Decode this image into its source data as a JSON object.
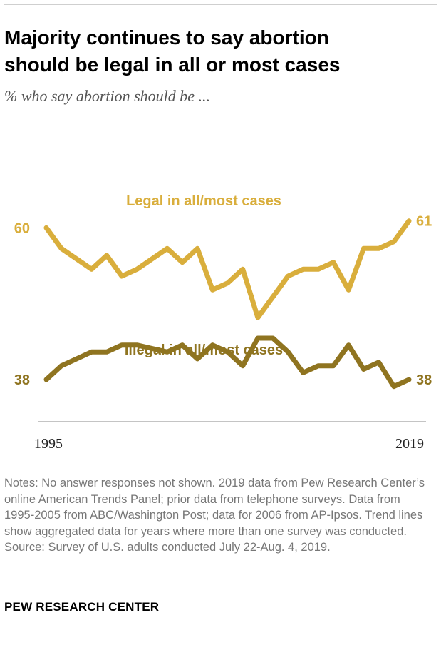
{
  "title_lines": [
    "Majority continues to say abortion",
    "should be legal in all or most cases"
  ],
  "subtitle": "% who say abortion should be ...",
  "chart_data": {
    "type": "line",
    "x_start_label": "1995",
    "x_end_label": "2019",
    "ylim": [
      20,
      80
    ],
    "grid": false,
    "series": [
      {
        "name": "Legal in all/most cases",
        "color": "#d9ae3c",
        "start_label": "60",
        "end_label": "61",
        "values": [
          60,
          57,
          55.5,
          54,
          56,
          53,
          54,
          55.5,
          57,
          55,
          57,
          51,
          52,
          54,
          47,
          50,
          53,
          54,
          54,
          55,
          51,
          57,
          57,
          58,
          61
        ]
      },
      {
        "name": "Illegal in all/most cases",
        "color": "#8f7420",
        "start_label": "38",
        "end_label": "38",
        "values": [
          38,
          40,
          41,
          42,
          42,
          43,
          43,
          42.5,
          42,
          43,
          41,
          43,
          42,
          40,
          44,
          44,
          42,
          39,
          40,
          40,
          43,
          39.5,
          40.5,
          37,
          38
        ]
      }
    ]
  },
  "notes": [
    "Notes: No answer responses not shown. 2019 data from Pew Research Center’s online American Trends Panel; prior data from telephone surveys. Data from 1995-2005 from ABC/Washington Post; data for 2006 from AP-Ipsos. Trend lines show aggregated data for years where more than one survey was conducted.",
    "Source: Survey of U.S. adults conducted July 22-Aug. 4, 2019."
  ],
  "brand": "PEW RESEARCH CENTER"
}
